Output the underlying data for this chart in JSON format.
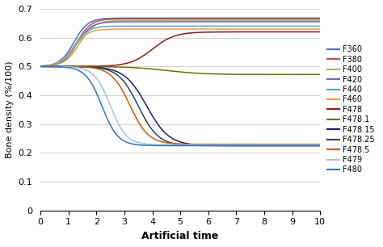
{
  "title": "",
  "xlabel": "Artificial time",
  "ylabel": "Bone density (%/100)",
  "xlim": [
    0,
    10
  ],
  "ylim": [
    0,
    0.7
  ],
  "yticks": [
    0,
    0.1,
    0.2,
    0.3,
    0.4,
    0.5,
    0.6,
    0.7
  ],
  "xticks": [
    0,
    1,
    2,
    3,
    4,
    5,
    6,
    7,
    8,
    9,
    10
  ],
  "series": [
    {
      "label": "F360",
      "color": "#4472C4",
      "final": 0.668,
      "inflect": 1.2,
      "speed": 4.0
    },
    {
      "label": "F380",
      "color": "#C0504D",
      "final": 0.665,
      "inflect": 1.3,
      "speed": 4.0
    },
    {
      "label": "F400",
      "color": "#9BBB59",
      "final": 0.66,
      "inflect": 1.4,
      "speed": 3.8
    },
    {
      "label": "F420",
      "color": "#8064A2",
      "final": 0.655,
      "inflect": 1.3,
      "speed": 4.0
    },
    {
      "label": "F440",
      "color": "#4BACC6",
      "final": 0.64,
      "inflect": 1.2,
      "speed": 4.0
    },
    {
      "label": "F460",
      "color": "#F79646",
      "final": 0.63,
      "inflect": 1.2,
      "speed": 4.0
    },
    {
      "label": "F478",
      "color": "#8B1A1A",
      "final": 0.62,
      "inflect": 4.0,
      "speed": 2.5
    },
    {
      "label": "F478.1",
      "color": "#6E6E00",
      "final": 0.472,
      "inflect": 4.5,
      "speed": 1.5
    },
    {
      "label": "F478.15",
      "color": "#1F1F5E",
      "final": 0.225,
      "inflect": 3.8,
      "speed": 2.5
    },
    {
      "label": "F478.25",
      "color": "#2E4057",
      "final": 0.225,
      "inflect": 3.5,
      "speed": 2.8
    },
    {
      "label": "F478.5",
      "color": "#C55A11",
      "final": 0.23,
      "inflect": 3.2,
      "speed": 3.0
    },
    {
      "label": "F479",
      "color": "#9DC3E6",
      "final": 0.228,
      "inflect": 2.5,
      "speed": 3.5
    },
    {
      "label": "F480",
      "color": "#2E75B6",
      "final": 0.225,
      "inflect": 2.2,
      "speed": 3.5
    }
  ],
  "background_color": "#FFFFFF",
  "grid_color": "#D3D3D3"
}
